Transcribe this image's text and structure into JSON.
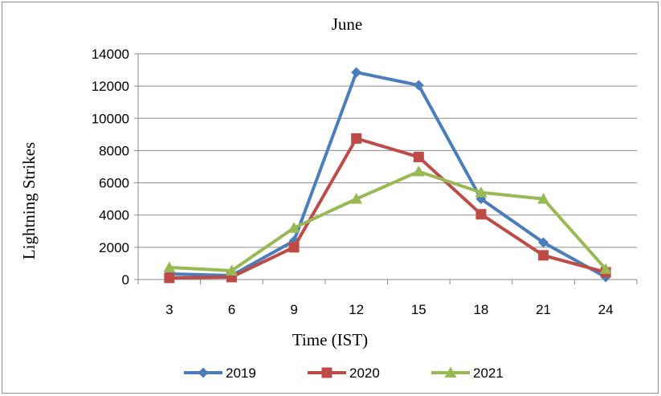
{
  "chart_data": {
    "type": "line",
    "title": "June",
    "xlabel": "Time (IST)",
    "ylabel": "Lightning Strikes",
    "categories": [
      "3",
      "6",
      "9",
      "12",
      "15",
      "18",
      "21",
      "24"
    ],
    "ylim": [
      0,
      14000
    ],
    "yticks": [
      0,
      2000,
      4000,
      6000,
      8000,
      10000,
      12000,
      14000
    ],
    "grid": "horizontal",
    "legend_position": "bottom",
    "series": [
      {
        "name": "2019",
        "color": "#4a7ebb",
        "marker": "diamond",
        "values": [
          350,
          250,
          2400,
          12850,
          12050,
          5000,
          2300,
          150
        ]
      },
      {
        "name": "2020",
        "color": "#be4b48",
        "marker": "square",
        "values": [
          100,
          150,
          2000,
          8750,
          7600,
          4050,
          1500,
          450
        ]
      },
      {
        "name": "2021",
        "color": "#98b954",
        "marker": "triangle",
        "values": [
          750,
          550,
          3200,
          5000,
          6700,
          5400,
          5000,
          650
        ]
      }
    ]
  }
}
